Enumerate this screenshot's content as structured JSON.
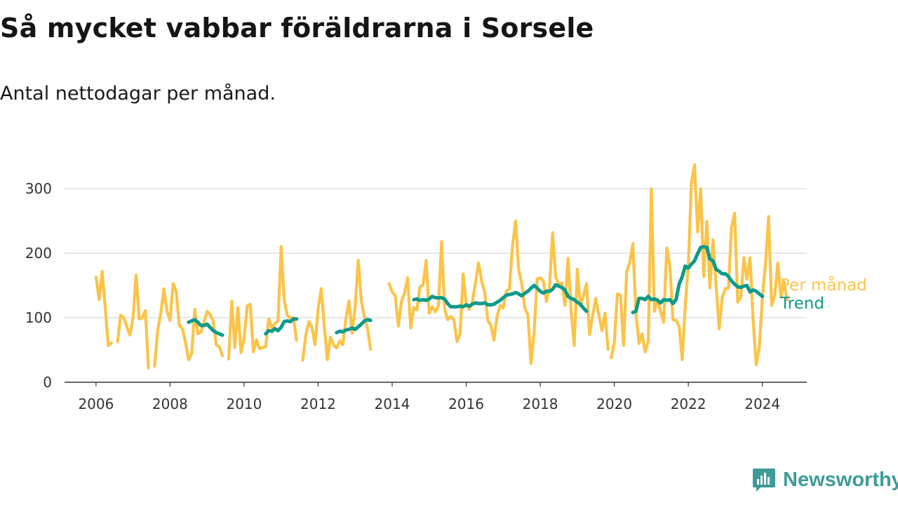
{
  "title": "Så mycket vabbar föräldrarna i Sorsele",
  "subtitle": "Antal nettodagar per månad.",
  "brand": {
    "name": "Newsworthy",
    "icon": "newsworthy-logo-icon",
    "color": "#3e9b98"
  },
  "colors": {
    "monthly": "#fcc348",
    "trend": "#0e9a8a",
    "grid": "#d9d9d9",
    "axis": "#333333"
  },
  "chart_data": {
    "type": "line",
    "title": "Så mycket vabbar föräldrarna i Sorsele",
    "subtitle": "Antal nettodagar per månad.",
    "xlabel": "",
    "ylabel": "",
    "xlim": [
      2005.15,
      2025.2
    ],
    "ylim": [
      0,
      300
    ],
    "x_ticks": [
      2006,
      2008,
      2010,
      2012,
      2014,
      2016,
      2018,
      2020,
      2022,
      2024
    ],
    "y_ticks": [
      0,
      100,
      200,
      300
    ],
    "grid": true,
    "legend": "right, at line ends",
    "series": [
      {
        "name": "Per månad",
        "color": "#fcc348",
        "segments": [
          {
            "start": 2006.0,
            "values": [
              163,
              128,
              172,
              115,
              57,
              61,
              null,
              63,
              104,
              100,
              86,
              73,
              100,
              166,
              98,
              100,
              111,
              22,
              null,
              25,
              81,
              107,
              145,
              110,
              96,
              153,
              141,
              88,
              83,
              62,
              35,
              44,
              113,
              75,
              78,
              93,
              110,
              105,
              94,
              58,
              55,
              41
            ]
          },
          {
            "start": 2009.5,
            "values": [
              null,
              36,
              126,
              54,
              116,
              46,
              68,
              118,
              121,
              47,
              66,
              52,
              54,
              55,
              98,
              84,
              91,
              95,
              210,
              127,
              104,
              99,
              100,
              65
            ]
          },
          {
            "start": 2011.583,
            "values": [
              34,
              73,
              94,
              86,
              58,
              113,
              145,
              88,
              35,
              70,
              58,
              53,
              64,
              58,
              98,
              126,
              76,
              116,
              189,
              126,
              102,
              84,
              51
            ]
          },
          {
            "start": 2013.917,
            "values": [
              153,
              140,
              134,
              87,
              125,
              138,
              162,
              84,
              116,
              112,
              148,
              151,
              189,
              107,
              117,
              109,
              119,
              218,
              113,
              97,
              102,
              97,
              63,
              75,
              168,
              120,
              113,
              125,
              154,
              185,
              157,
              140,
              96,
              88,
              65,
              102,
              119,
              115,
              141,
              145,
              211,
              250,
              174,
              153,
              115,
              104,
              29,
              77,
              160,
              162,
              157,
              125,
              148,
              232,
              163,
              152,
              154,
              119,
              192,
              110,
              57,
              175,
              118,
              134,
              153,
              74,
              104,
              130,
              104,
              80,
              107,
              51
            ]
          },
          {
            "start": 2019.917,
            "values": [
              38,
              61,
              137,
              135,
              57,
              172,
              185,
              215,
              109,
              60,
              75,
              47,
              64,
              300,
              110,
              129,
              110,
              93,
              208,
              181,
              97,
              96,
              87,
              35,
              120,
              183,
              310,
              337,
              233,
              300,
              164,
              249,
              146,
              221,
              150,
              83,
              131,
              145,
              146,
              240,
              262,
              124,
              132,
              193,
              160,
              193,
              96,
              27,
              54,
              131,
              183,
              257,
              119,
              135,
              185,
              132,
              156,
              128
            ]
          }
        ]
      },
      {
        "name": "Trend",
        "color": "#0e9a8a",
        "segments": [
          {
            "start": 2008.5,
            "values": [
              93,
              95,
              97,
              93,
              88,
              88,
              90,
              85,
              80,
              77,
              75,
              73
            ]
          },
          {
            "start": 2010.583,
            "values": [
              75,
              80,
              79,
              83,
              80,
              85,
              94,
              95,
              94,
              98,
              98
            ]
          },
          {
            "start": 2012.5,
            "values": [
              77,
              79,
              78,
              81,
              82,
              84,
              82,
              86,
              90,
              95,
              97,
              96
            ]
          },
          {
            "start": 2014.583,
            "values": [
              128,
              129,
              127,
              128,
              127,
              129,
              133,
              131,
              131,
              131,
              129,
              122,
              117,
              117,
              117,
              118,
              117,
              120,
              118,
              121,
              123,
              122,
              122,
              123,
              120,
              120,
              121,
              124,
              127,
              131,
              135,
              136,
              137,
              139,
              137,
              134,
              138,
              141,
              146,
              150,
              146,
              141,
              138,
              141,
              141,
              144,
              151,
              149,
              147,
              143,
              133,
              130,
              128,
              124,
              121,
              115,
              110
            ]
          },
          {
            "start": 2020.5,
            "values": [
              108,
              110,
              130,
              130,
              128,
              133,
              128,
              129,
              127,
              123,
              128,
              127,
              128,
              122,
              128,
              152,
              163,
              180,
              177,
              183,
              188,
              199,
              209,
              210,
              209,
              191,
              188,
              175,
              172,
              168,
              168,
              164,
              157,
              152,
              148,
              147,
              149,
              150,
              140,
              143,
              141,
              137,
              133
            ]
          }
        ]
      }
    ]
  }
}
